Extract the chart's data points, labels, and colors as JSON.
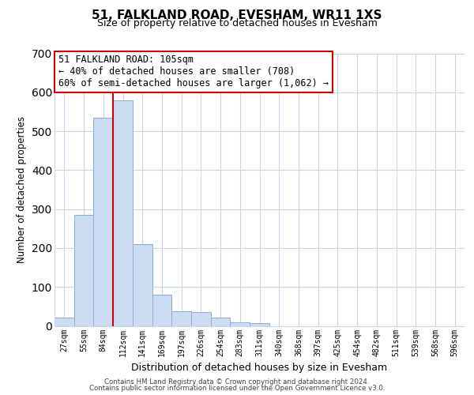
{
  "title": "51, FALKLAND ROAD, EVESHAM, WR11 1XS",
  "subtitle": "Size of property relative to detached houses in Evesham",
  "xlabel": "Distribution of detached houses by size in Evesham",
  "ylabel": "Number of detached properties",
  "bar_labels": [
    "27sqm",
    "55sqm",
    "84sqm",
    "112sqm",
    "141sqm",
    "169sqm",
    "197sqm",
    "226sqm",
    "254sqm",
    "283sqm",
    "311sqm",
    "340sqm",
    "368sqm",
    "397sqm",
    "425sqm",
    "454sqm",
    "482sqm",
    "511sqm",
    "539sqm",
    "568sqm",
    "596sqm"
  ],
  "bar_values": [
    22,
    285,
    535,
    580,
    210,
    80,
    37,
    35,
    22,
    10,
    8,
    0,
    0,
    0,
    0,
    0,
    0,
    0,
    0,
    0,
    0
  ],
  "bar_color": "#ccdcf0",
  "bar_edge_color": "#8baed4",
  "ylim": [
    0,
    700
  ],
  "yticks": [
    0,
    100,
    200,
    300,
    400,
    500,
    600,
    700
  ],
  "property_line_color": "#cc0000",
  "annotation_title": "51 FALKLAND ROAD: 105sqm",
  "annotation_line1": "← 40% of detached houses are smaller (708)",
  "annotation_line2": "60% of semi-detached houses are larger (1,062) →",
  "annotation_box_color": "#ffffff",
  "annotation_box_edge": "#cc0000",
  "footer_line1": "Contains HM Land Registry data © Crown copyright and database right 2024.",
  "footer_line2": "Contains public sector information licensed under the Open Government Licence v3.0.",
  "background_color": "#ffffff",
  "grid_color": "#c8d8ec"
}
